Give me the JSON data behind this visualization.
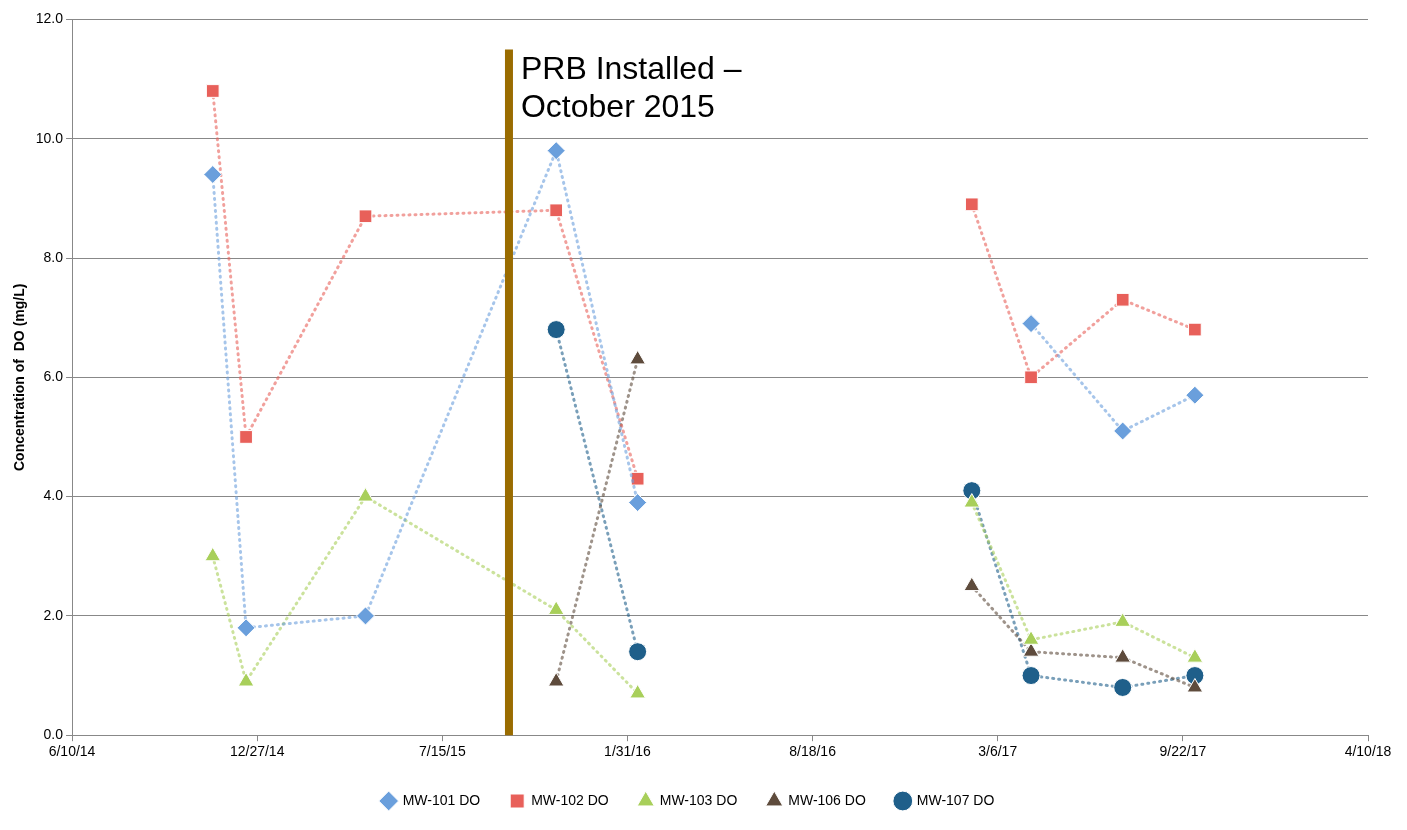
{
  "chart_data": {
    "type": "line",
    "ylabel": "Concentration of  DO (mg/L)",
    "line_style": "dotted",
    "grid": "y",
    "legend": "bottom",
    "xlim": [
      "2014-06-10",
      "2018-04-10"
    ],
    "xticks": [
      {
        "value": "2014-06-10",
        "label": "6/10/14"
      },
      {
        "value": "2014-12-27",
        "label": "12/27/14"
      },
      {
        "value": "2015-07-15",
        "label": "7/15/15"
      },
      {
        "value": "2016-01-31",
        "label": "1/31/16"
      },
      {
        "value": "2016-08-18",
        "label": "8/18/16"
      },
      {
        "value": "2017-03-06",
        "label": "3/6/17"
      },
      {
        "value": "2017-09-22",
        "label": "9/22/17"
      },
      {
        "value": "2018-04-10",
        "label": "4/10/18"
      }
    ],
    "ylim": [
      0,
      12
    ],
    "yticks": [
      {
        "value": 0,
        "label": "0.0"
      },
      {
        "value": 2,
        "label": "2.0"
      },
      {
        "value": 4,
        "label": "4.0"
      },
      {
        "value": 6,
        "label": "6.0"
      },
      {
        "value": 8,
        "label": "8.0"
      },
      {
        "value": 10,
        "label": "10.0"
      },
      {
        "value": 12,
        "label": "12.0"
      }
    ],
    "series": [
      {
        "name": "MW-101 DO",
        "color": "#6a9fdc",
        "marker": "diamond",
        "x": [
          "2014-11-09",
          "2014-12-15",
          "2015-04-23",
          "2015-11-15",
          "2016-02-11",
          "2016-08-18",
          "2017-04-11",
          "2017-07-19",
          "2017-10-05"
        ],
        "values": [
          9.4,
          1.8,
          2.0,
          9.8,
          3.9,
          null,
          6.9,
          5.1,
          5.7
        ]
      },
      {
        "name": "MW-102 DO",
        "color": "#e8605a",
        "marker": "square",
        "x": [
          "2014-11-09",
          "2014-12-15",
          "2015-04-23",
          "2015-11-15",
          "2016-02-11",
          "2016-08-18",
          "2017-02-06",
          "2017-04-11",
          "2017-07-19",
          "2017-10-05"
        ],
        "values": [
          10.8,
          5.0,
          8.7,
          8.8,
          4.3,
          null,
          8.9,
          6.0,
          7.3,
          6.8
        ]
      },
      {
        "name": "MW-103 DO",
        "color": "#a8cf5a",
        "marker": "triangle",
        "x": [
          "2014-11-09",
          "2014-12-15",
          "2015-04-23",
          "2015-11-15",
          "2016-02-11",
          "2016-08-18",
          "2017-02-06",
          "2017-04-11",
          "2017-07-19",
          "2017-10-05"
        ],
        "values": [
          3.0,
          0.9,
          4.0,
          2.1,
          0.7,
          null,
          3.9,
          1.6,
          1.9,
          1.3
        ]
      },
      {
        "name": "MW-106 DO",
        "color": "#5e4b3c",
        "marker": "triangle",
        "x": [
          "2015-11-15",
          "2016-02-11",
          "2016-08-18",
          "2017-02-06",
          "2017-04-11",
          "2017-07-19",
          "2017-10-05"
        ],
        "values": [
          0.9,
          6.3,
          null,
          2.5,
          1.4,
          1.3,
          0.8
        ]
      },
      {
        "name": "MW-107 DO",
        "color": "#1f5f8a",
        "marker": "circle",
        "x": [
          "2015-11-15",
          "2016-02-11",
          "2016-08-18",
          "2017-02-06",
          "2017-04-11",
          "2017-07-19",
          "2017-10-05"
        ],
        "values": [
          6.8,
          1.4,
          null,
          4.1,
          1.0,
          0.8,
          1.0
        ]
      }
    ],
    "ref_lines": [
      {
        "axis": "x",
        "value": "2015-09-25",
        "label": "PRB Installed – October 2015",
        "color": "#9a6c00"
      }
    ]
  }
}
